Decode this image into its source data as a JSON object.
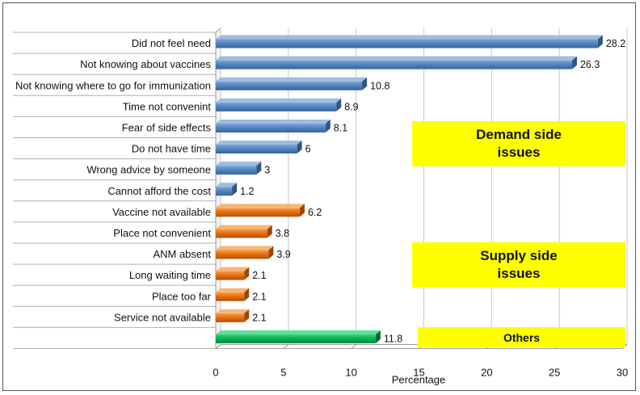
{
  "chart_data": {
    "type": "bar",
    "orientation": "horizontal",
    "title": "",
    "xlabel": "Percentage",
    "ylabel": "",
    "xlim": [
      0,
      30
    ],
    "x_ticks": [
      0,
      5,
      10,
      15,
      20,
      25,
      30
    ],
    "grid": true,
    "categories": [
      "Did not feel need",
      "Not knowing about vaccines",
      "Not knowing where to go for immunization",
      "Time not convenint",
      "Fear of side effects",
      "Do not have time",
      "Wrong advice by someone",
      "Cannot afford the cost",
      "Vaccine not available",
      "Place not convenient",
      "ANM absent",
      "Long waiting time",
      "Place too far",
      "Service not available",
      ""
    ],
    "values": [
      28.2,
      26.3,
      10.8,
      8.9,
      8.1,
      6,
      3,
      1.2,
      6.2,
      3.8,
      3.9,
      2.1,
      2.1,
      2.1,
      11.8
    ],
    "value_labels": [
      "28.2",
      "26.3",
      "10.8",
      "8.9",
      "8.1",
      "6",
      "3",
      "1.2",
      "6.2",
      "3.8",
      "3.9",
      "2.1",
      "2.1",
      "2.1",
      "11.8"
    ],
    "groups": [
      "demand",
      "demand",
      "demand",
      "demand",
      "demand",
      "demand",
      "demand",
      "demand",
      "supply",
      "supply",
      "supply",
      "supply",
      "supply",
      "supply",
      "others"
    ],
    "group_colors": {
      "demand": "#4f81bd",
      "supply": "#e46c0a",
      "others": "#00b050"
    },
    "annotations": {
      "demand": [
        "Demand side",
        "issues"
      ],
      "supply": [
        "Supply side",
        "issues"
      ],
      "others": "Others"
    },
    "annotation_color": "#ffff00"
  }
}
